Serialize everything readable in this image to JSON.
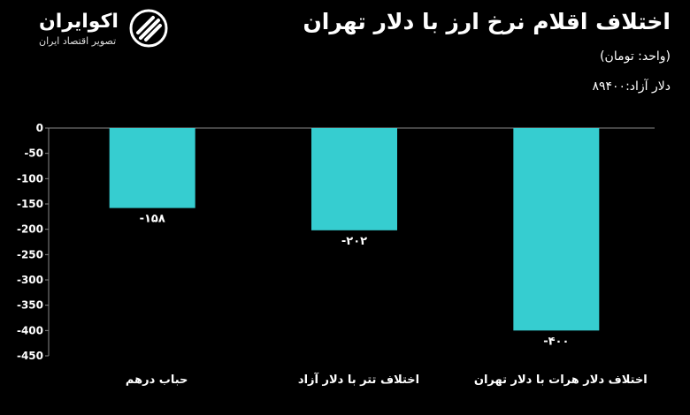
{
  "header": {
    "title": "اختلاف اقلام نرخ ارز با دلار تهران",
    "unit": "(واحد: تومان)",
    "rate": "دلار آزاد:۸۹۴۰۰"
  },
  "logo": {
    "name": "اکوایران",
    "tagline": "تصویر اقتصاد ایران"
  },
  "colors": {
    "background": "#000000",
    "bar": "#36cdd0",
    "text": "#ffffff",
    "grid": "#8a8a8a"
  },
  "chart_data": {
    "type": "bar",
    "categories": [
      "حباب درهم",
      "اختلاف تتر با دلار آزاد",
      "اختلاف دلار هرات با دلار تهران"
    ],
    "values": [
      -158,
      -202,
      -400
    ],
    "data_labels": [
      "-۱۵۸",
      "-۲۰۲",
      "-۴۰۰"
    ],
    "ylim": [
      -450,
      0
    ],
    "yticks": [
      0,
      -50,
      -100,
      -150,
      -200,
      -250,
      -300,
      -350,
      -400,
      -450
    ],
    "ytick_labels": [
      "0",
      "-50",
      "-100",
      "-150",
      "-200",
      "-250",
      "-300",
      "-350",
      "-400",
      "-450"
    ],
    "grid": false
  }
}
